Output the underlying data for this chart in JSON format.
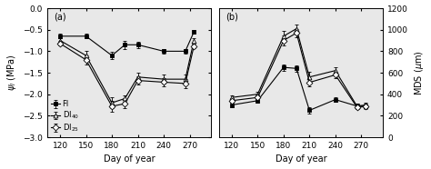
{
  "panel_a": {
    "title": "(a)",
    "xlabel": "Day of year",
    "ylabel": "$\\psi_l$ (MPa)",
    "xlim": [
      105,
      295
    ],
    "ylim": [
      -3.0,
      0.0
    ],
    "yticks": [
      0.0,
      -0.5,
      -1.0,
      -1.5,
      -2.0,
      -2.5,
      -3.0
    ],
    "xticks": [
      120,
      150,
      180,
      210,
      240,
      270
    ],
    "series": {
      "Fl": {
        "x": [
          120,
          150,
          180,
          195,
          210,
          240,
          265,
          275
        ],
        "y": [
          -0.65,
          -0.65,
          -1.1,
          -0.85,
          -0.85,
          -1.0,
          -1.0,
          -0.55
        ],
        "yerr": [
          0.05,
          0.05,
          0.08,
          0.1,
          0.07,
          0.05,
          0.05,
          0.05
        ],
        "marker": "s",
        "fillstyle": "full"
      },
      "DI40": {
        "x": [
          120,
          150,
          180,
          195,
          210,
          240,
          265,
          275
        ],
        "y": [
          -0.75,
          -1.1,
          -2.2,
          -2.1,
          -1.6,
          -1.65,
          -1.65,
          -0.75
        ],
        "yerr": [
          0.05,
          0.1,
          0.12,
          0.07,
          0.1,
          0.1,
          0.1,
          0.05
        ],
        "marker": "^",
        "fillstyle": "none"
      },
      "DI25": {
        "x": [
          120,
          150,
          180,
          195,
          210,
          240,
          265,
          275
        ],
        "y": [
          -0.82,
          -1.2,
          -2.28,
          -2.22,
          -1.68,
          -1.72,
          -1.75,
          -0.88
        ],
        "yerr": [
          0.05,
          0.1,
          0.12,
          0.1,
          0.1,
          0.1,
          0.1,
          0.05
        ],
        "marker": "D",
        "fillstyle": "none"
      }
    },
    "legend": {
      "Fl": "Fl",
      "DI40": "DI$_{40}$",
      "DI25": "DI$_{25}$"
    }
  },
  "panel_b": {
    "title": "(b)",
    "xlabel": "Day of year",
    "ylabel": "MDS ($\\mu$m)",
    "xlim": [
      105,
      295
    ],
    "ylim": [
      0,
      1200
    ],
    "yticks": [
      0,
      200,
      400,
      600,
      800,
      1000,
      1200
    ],
    "xticks": [
      120,
      150,
      180,
      210,
      240,
      270
    ],
    "series": {
      "Fl": {
        "x": [
          120,
          150,
          180,
          195,
          210,
          240,
          265,
          275
        ],
        "y": [
          300,
          340,
          650,
          640,
          250,
          350,
          290,
          290
        ],
        "yerr": [
          20,
          20,
          30,
          30,
          30,
          20,
          20,
          20
        ],
        "marker": "s",
        "fillstyle": "full"
      },
      "DI40": {
        "x": [
          120,
          150,
          180,
          195,
          210,
          240,
          265,
          275
        ],
        "y": [
          370,
          400,
          940,
          1010,
          560,
          620,
          290,
          300
        ],
        "yerr": [
          20,
          25,
          45,
          35,
          45,
          35,
          20,
          20
        ],
        "marker": "^",
        "fillstyle": "none"
      },
      "DI25": {
        "x": [
          120,
          150,
          180,
          195,
          210,
          240,
          265,
          275
        ],
        "y": [
          340,
          370,
          900,
          970,
          510,
          580,
          280,
          285
        ],
        "yerr": [
          20,
          25,
          45,
          40,
          40,
          30,
          20,
          20
        ],
        "marker": "D",
        "fillstyle": "none"
      }
    }
  },
  "line_color": "black",
  "linewidth": 0.8,
  "markersize": 3.5,
  "fontsize": 6.5,
  "bg_color": "#e8e8e8"
}
